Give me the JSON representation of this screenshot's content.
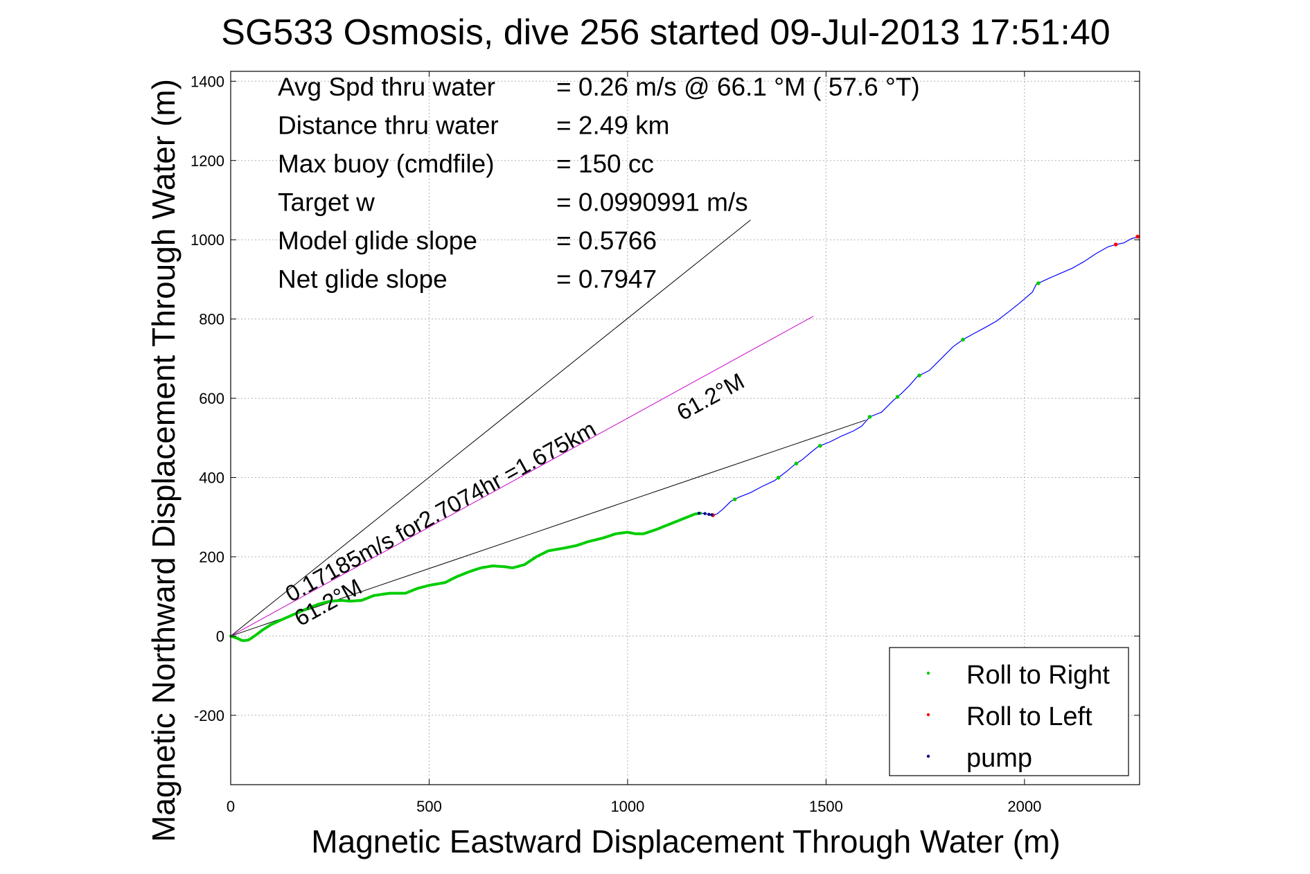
{
  "chart_data": {
    "type": "scatter",
    "title": "SG533 Osmosis, dive 256 started 09-Jul-2013 17:51:40",
    "xlabel": "Magnetic Eastward Displacement Through Water (m)",
    "ylabel": "Magnetic Northward Displacement Through Water (m)",
    "xlim": [
      0,
      2290
    ],
    "ylim": [
      -375,
      1425
    ],
    "xticks": [
      "0",
      "500",
      "1000",
      "1500",
      "2000"
    ],
    "yticks": [
      "-200",
      "0",
      "200",
      "400",
      "600",
      "800",
      "1000",
      "1200",
      "1400"
    ],
    "grid": true,
    "legend_position": "bottom-right",
    "info_lines": [
      {
        "label": "Avg Spd thru water",
        "value": "=  0.26 m/s @  66.1 °M ( 57.6 °T)"
      },
      {
        "label": "Distance thru water",
        "value": "=  2.49 km"
      },
      {
        "label": "Max buoy (cmdfile)",
        "value": "= 150 cc"
      },
      {
        "label": "Target w",
        "value": "= 0.0990991 m/s"
      },
      {
        "label": "Model glide slope",
        "value": "= 0.5766"
      },
      {
        "label": "Net glide slope",
        "value": "= 0.7947"
      }
    ],
    "annotations": {
      "current_text": "0.17185m/s for2.7074hr =1.675km",
      "heading_start": "61.2°M",
      "heading_end": "61.2°M"
    },
    "reference_lines": [
      {
        "from": [
          0,
          0
        ],
        "to": [
          1310,
          1050
        ],
        "color": "#000000"
      },
      {
        "from": [
          0,
          0
        ],
        "to": [
          1600,
          545
        ],
        "color": "#000000"
      },
      {
        "from": [
          0,
          0
        ],
        "to": [
          1468,
          807
        ],
        "color": "#cc00cc"
      }
    ],
    "track": {
      "color": "#0000ff",
      "points": [
        [
          0,
          0
        ],
        [
          15,
          -5
        ],
        [
          30,
          -12
        ],
        [
          45,
          -10
        ],
        [
          60,
          0
        ],
        [
          80,
          15
        ],
        [
          100,
          28
        ],
        [
          130,
          42
        ],
        [
          160,
          55
        ],
        [
          190,
          68
        ],
        [
          220,
          80
        ],
        [
          250,
          88
        ],
        [
          280,
          90
        ],
        [
          300,
          88
        ],
        [
          330,
          90
        ],
        [
          360,
          102
        ],
        [
          400,
          108
        ],
        [
          440,
          108
        ],
        [
          470,
          120
        ],
        [
          500,
          128
        ],
        [
          540,
          135
        ],
        [
          570,
          150
        ],
        [
          600,
          162
        ],
        [
          630,
          172
        ],
        [
          660,
          177
        ],
        [
          690,
          175
        ],
        [
          710,
          172
        ],
        [
          740,
          180
        ],
        [
          770,
          200
        ],
        [
          800,
          215
        ],
        [
          840,
          222
        ],
        [
          870,
          228
        ],
        [
          900,
          238
        ],
        [
          940,
          248
        ],
        [
          970,
          258
        ],
        [
          1000,
          262
        ],
        [
          1020,
          258
        ],
        [
          1040,
          258
        ],
        [
          1070,
          268
        ],
        [
          1100,
          280
        ],
        [
          1130,
          292
        ],
        [
          1150,
          300
        ],
        [
          1170,
          308
        ],
        [
          1185,
          310
        ],
        [
          1200,
          308
        ],
        [
          1215,
          305
        ],
        [
          1225,
          308
        ],
        [
          1240,
          320
        ],
        [
          1260,
          340
        ],
        [
          1280,
          350
        ],
        [
          1310,
          362
        ],
        [
          1340,
          378
        ],
        [
          1370,
          392
        ],
        [
          1400,
          415
        ],
        [
          1420,
          432
        ],
        [
          1440,
          445
        ],
        [
          1460,
          462
        ],
        [
          1480,
          478
        ],
        [
          1510,
          490
        ],
        [
          1540,
          505
        ],
        [
          1570,
          518
        ],
        [
          1590,
          530
        ],
        [
          1610,
          553
        ],
        [
          1640,
          565
        ],
        [
          1670,
          595
        ],
        [
          1690,
          612
        ],
        [
          1710,
          632
        ],
        [
          1730,
          655
        ],
        [
          1760,
          670
        ],
        [
          1790,
          700
        ],
        [
          1820,
          730
        ],
        [
          1845,
          748
        ],
        [
          1870,
          762
        ],
        [
          1900,
          778
        ],
        [
          1930,
          795
        ],
        [
          1960,
          818
        ],
        [
          1990,
          842
        ],
        [
          2020,
          868
        ],
        [
          2030,
          888
        ],
        [
          2060,
          902
        ],
        [
          2090,
          915
        ],
        [
          2120,
          928
        ],
        [
          2150,
          945
        ],
        [
          2180,
          965
        ],
        [
          2210,
          982
        ],
        [
          2230,
          988
        ],
        [
          2250,
          992
        ],
        [
          2270,
          1003
        ],
        [
          2290,
          1008
        ]
      ]
    },
    "series": [
      {
        "name": "Roll to Right",
        "color": "#00cc00",
        "marker": "dot"
      },
      {
        "name": "Roll to Left",
        "color": "#ff0000",
        "marker": "dot"
      },
      {
        "name": "pump",
        "color": "#000080",
        "marker": "dot"
      }
    ],
    "roll_right_x_range": [
      0,
      1185
    ],
    "roll_right_markers": [
      1270,
      1380,
      1425,
      1485,
      1610,
      1680,
      1735,
      1845,
      2035
    ],
    "roll_left_points": [
      [
        1215,
        305
      ],
      [
        2230,
        988
      ],
      [
        2285,
        1008
      ]
    ],
    "pump_points": [
      [
        1180,
        310
      ],
      [
        1195,
        309
      ],
      [
        1205,
        307
      ],
      [
        1212,
        306
      ]
    ]
  }
}
